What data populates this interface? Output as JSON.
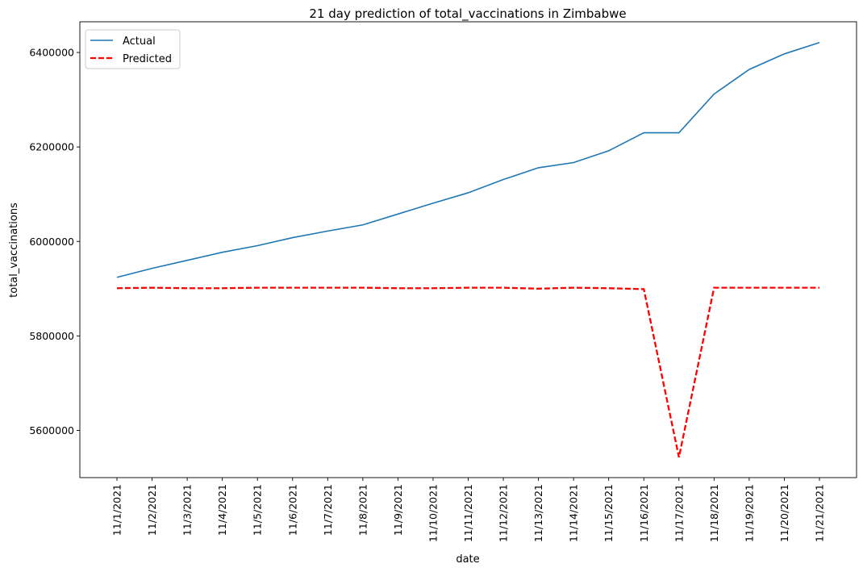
{
  "chart_data": {
    "type": "line",
    "title": "21 day prediction of total_vaccinations in Zimbabwe",
    "xlabel": "date",
    "ylabel": "total_vaccinations",
    "categories": [
      "11/1/2021",
      "11/2/2021",
      "11/3/2021",
      "11/4/2021",
      "11/5/2021",
      "11/6/2021",
      "11/7/2021",
      "11/8/2021",
      "11/9/2021",
      "11/10/2021",
      "11/11/2021",
      "11/12/2021",
      "11/13/2021",
      "11/14/2021",
      "11/15/2021",
      "11/16/2021",
      "11/17/2021",
      "11/18/2021",
      "11/19/2021",
      "11/20/2021",
      "11/21/2021"
    ],
    "ylim": [
      5500000,
      6465000
    ],
    "yticks": [
      5600000,
      5800000,
      6000000,
      6200000,
      6400000
    ],
    "ytick_labels": [
      "5600000",
      "5800000",
      "6000000",
      "6200000",
      "6400000"
    ],
    "grid": false,
    "legend_position": "top-left",
    "series": [
      {
        "name": "Actual",
        "color": "#1f77b4",
        "style": "solid",
        "values": [
          5924000,
          5943000,
          5960000,
          5977000,
          5991000,
          6008000,
          6022000,
          6035000,
          6058000,
          6081000,
          6103000,
          6131000,
          6156000,
          6167000,
          6192000,
          6230000,
          6230000,
          6312000,
          6364000,
          6397000,
          6421000
        ]
      },
      {
        "name": "Predicted",
        "color": "#ff0000",
        "style": "dashed",
        "values": [
          5901000,
          5902000,
          5901000,
          5901000,
          5902000,
          5902000,
          5902000,
          5902000,
          5901000,
          5901000,
          5902000,
          5902000,
          5900000,
          5902000,
          5901000,
          5899000,
          5543000,
          5902000,
          5902000,
          5902000,
          5902000
        ]
      }
    ]
  }
}
